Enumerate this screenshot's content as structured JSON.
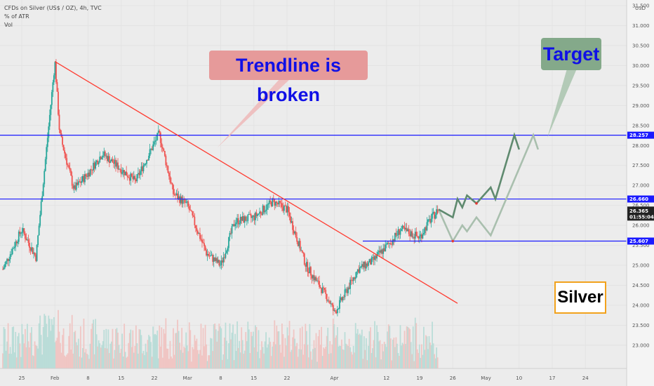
{
  "legend": {
    "symbol_line": "CFDs on Silver (US$ / OZ), 4h, TVC",
    "indicator": "% of ATR",
    "volume": "Vol"
  },
  "annotations": {
    "trendline_callout": "Trendline is broken",
    "target_callout": "Target",
    "asset_label": "Silver"
  },
  "price_axis": {
    "currency": "USD",
    "top_tick": "31.500"
  },
  "levels": {
    "resistance_upper": "28.257",
    "resistance_lower": "26.660",
    "support": "25.607",
    "last_price": "26.365",
    "countdown": "01:55:04"
  },
  "colors": {
    "level_line": "#1a1aff",
    "trendline": "#ff3b30",
    "candle_up": "#26a69a",
    "candle_down": "#ef5350",
    "projection_dark": "#5f8a6f",
    "projection_light": "#a9bfae"
  },
  "chart_data": {
    "type": "candlestick",
    "title": "CFDs on Silver (US$ / OZ), 4h, TVC",
    "y_unit": "USD",
    "ylim": [
      22.7,
      31.5
    ],
    "y_ticks": [
      23.0,
      23.5,
      24.0,
      24.5,
      25.0,
      25.5,
      26.0,
      26.5,
      27.0,
      27.5,
      28.0,
      28.5,
      29.0,
      29.5,
      30.0,
      30.5,
      31.0,
      31.5
    ],
    "y_tick_labels": [
      "23.000",
      "23.500",
      "24.000",
      "24.500",
      "25.000",
      "25.500",
      "26.000",
      "26.500",
      "27.000",
      "27.500",
      "28.000",
      "28.500",
      "29.000",
      "29.500",
      "30.000",
      "30.500",
      "31.000",
      "31.500"
    ],
    "x_tick_labels": [
      "25",
      "Feb",
      "8",
      "15",
      "22",
      "Mar",
      "8",
      "15",
      "22",
      "Apr",
      "12",
      "19",
      "26",
      "May",
      "10",
      "17",
      "24"
    ],
    "price_path": [
      [
        "2021-01-21",
        24.9
      ],
      [
        "2021-01-25",
        25.9
      ],
      [
        "2021-01-28",
        25.2
      ],
      [
        "2021-02-01",
        30.1
      ],
      [
        "2021-02-02",
        28.3
      ],
      [
        "2021-02-05",
        26.9
      ],
      [
        "2021-02-08",
        27.3
      ],
      [
        "2021-02-11",
        27.8
      ],
      [
        "2021-02-15",
        27.4
      ],
      [
        "2021-02-18",
        27.1
      ],
      [
        "2021-02-23",
        28.3
      ],
      [
        "2021-02-26",
        26.8
      ],
      [
        "2021-03-01",
        26.5
      ],
      [
        "2021-03-05",
        25.3
      ],
      [
        "2021-03-08",
        25.0
      ],
      [
        "2021-03-11",
        26.1
      ],
      [
        "2021-03-15",
        26.2
      ],
      [
        "2021-03-19",
        26.6
      ],
      [
        "2021-03-22",
        26.4
      ],
      [
        "2021-03-24",
        25.7
      ],
      [
        "2021-03-26",
        25.0
      ],
      [
        "2021-03-31",
        24.1
      ],
      [
        "2021-04-01",
        23.8
      ],
      [
        "2021-04-06",
        24.9
      ],
      [
        "2021-04-09",
        25.1
      ],
      [
        "2021-04-13",
        25.6
      ],
      [
        "2021-04-15",
        25.9
      ],
      [
        "2021-04-19",
        25.7
      ],
      [
        "2021-04-21",
        26.1
      ],
      [
        "2021-04-23",
        26.4
      ]
    ],
    "trendline": {
      "from": [
        "2021-02-01",
        30.1
      ],
      "to": [
        "2021-04-27",
        24.05
      ]
    },
    "horizontal_levels": [
      28.257,
      26.66,
      25.607
    ],
    "projection_primary": [
      [
        "2021-04-23",
        26.4
      ],
      [
        "2021-04-26",
        26.2
      ],
      [
        "2021-04-27",
        26.66
      ],
      [
        "2021-04-28",
        26.45
      ],
      [
        "2021-04-29",
        26.75
      ],
      [
        "2021-05-01",
        26.55
      ],
      [
        "2021-05-04",
        26.95
      ],
      [
        "2021-05-05",
        26.66
      ],
      [
        "2021-05-09",
        28.257
      ],
      [
        "2021-05-10",
        27.9
      ]
    ],
    "projection_alternative": [
      [
        "2021-04-23",
        26.4
      ],
      [
        "2021-04-26",
        25.607
      ],
      [
        "2021-04-28",
        26.0
      ],
      [
        "2021-04-29",
        25.85
      ],
      [
        "2021-05-01",
        26.2
      ],
      [
        "2021-05-04",
        25.75
      ],
      [
        "2021-05-13",
        28.257
      ],
      [
        "2021-05-14",
        27.9
      ]
    ],
    "last_price": 26.365
  }
}
